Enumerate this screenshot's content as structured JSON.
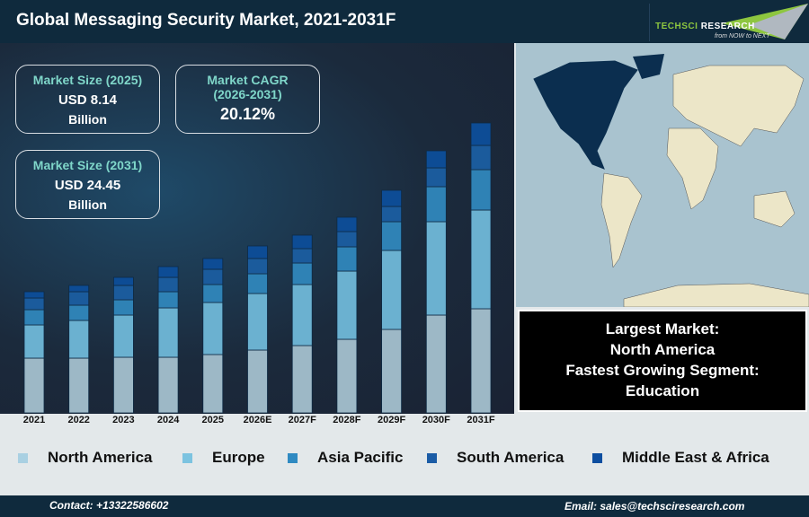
{
  "header": {
    "title": "Global Messaging Security Market, 2021-2031F",
    "logo_text": "TechSci Research",
    "logo_tagline": "from NOW to NEXT"
  },
  "cards": [
    {
      "heading": "Market Size (2025)",
      "value": "USD 8.14",
      "unit": "Billion"
    },
    {
      "heading": "Market CAGR",
      "subheading": "(2026-2031)",
      "value": "20.12%"
    },
    {
      "heading": "Market Size (2031)",
      "value": "USD 24.45",
      "unit": "Billion"
    }
  ],
  "info": {
    "line1": "Largest Market:",
    "line2": "North America",
    "line3": "Fastest Growing Segment:",
    "line4": "Education"
  },
  "footer": {
    "contact": "Contact: +13322586602",
    "email": "Email: sales@techsciresearch.com"
  },
  "chart_data": {
    "type": "bar",
    "stacked": true,
    "grid": false,
    "legend": "bottom",
    "value_axis": "none (relative segment sizes)",
    "categories": [
      "2021",
      "2022",
      "2023",
      "2024",
      "2025",
      "2026E",
      "2027F",
      "2028F",
      "2029F",
      "2030F",
      "2031F"
    ],
    "series": [
      {
        "name": "North America",
        "color": "#9db8c6",
        "legend_color": "#a9d0e2",
        "values": [
          61,
          61,
          62,
          62,
          65,
          70,
          75,
          82,
          93,
          109,
          116
        ]
      },
      {
        "name": "Europe",
        "color": "#6bb1d0",
        "legend_color": "#7cc3e0",
        "values": [
          37,
          42,
          47,
          55,
          58,
          63,
          68,
          76,
          88,
          104,
          110
        ]
      },
      {
        "name": "Asia Pacific",
        "color": "#2f82b5",
        "legend_color": "#2f8ac2",
        "values": [
          17,
          17,
          17,
          18,
          20,
          22,
          24,
          27,
          32,
          39,
          45
        ]
      },
      {
        "name": "South America",
        "color": "#1b5b9c",
        "legend_color": "#1b5ca6",
        "values": [
          13,
          15,
          16,
          16,
          17,
          17,
          16,
          17,
          17,
          21,
          27
        ]
      },
      {
        "name": "Middle East & Africa",
        "color": "#0d4c95",
        "legend_color": "#0d4ea0",
        "values": [
          7,
          7,
          9,
          12,
          12,
          14,
          15,
          16,
          18,
          19,
          25
        ]
      }
    ]
  }
}
